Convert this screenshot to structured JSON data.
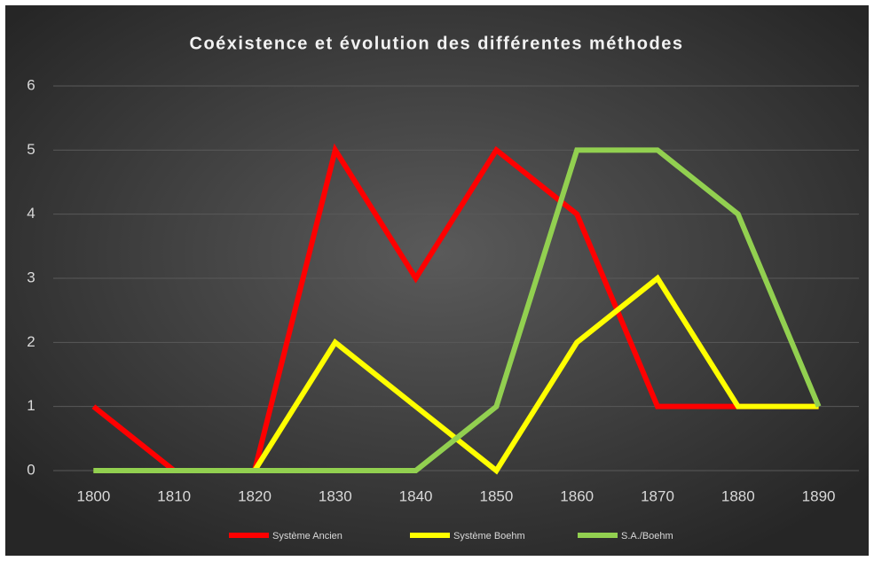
{
  "chart_data": {
    "type": "line",
    "title": "Coéxistence et évolution des différentes méthodes",
    "categories": [
      "1800",
      "1810",
      "1820",
      "1830",
      "1840",
      "1850",
      "1860",
      "1870",
      "1880",
      "1890"
    ],
    "series": [
      {
        "name": "Système Ancien",
        "color": "#ff0000",
        "values": [
          1,
          0,
          0,
          5,
          3,
          5,
          4,
          1,
          1,
          1
        ]
      },
      {
        "name": "Système Boehm",
        "color": "#ffff00",
        "values": [
          0,
          0,
          0,
          2,
          1,
          0,
          2,
          3,
          1,
          1
        ]
      },
      {
        "name": "S.A./Boehm",
        "color": "#92d050",
        "values": [
          0,
          0,
          0,
          0,
          0,
          1,
          5,
          5,
          4,
          1
        ]
      }
    ],
    "ylim": [
      0,
      6
    ],
    "yticks": [
      0,
      1,
      2,
      3,
      4,
      5,
      6
    ],
    "grid": true,
    "legend": "bottom"
  }
}
